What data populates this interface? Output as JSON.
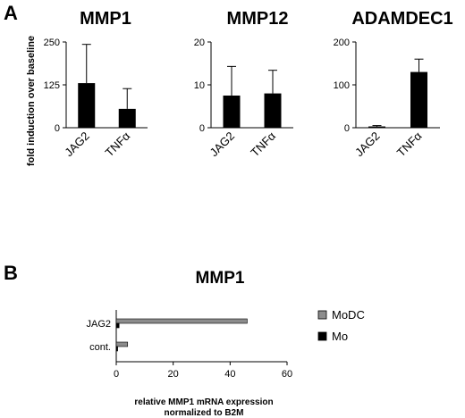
{
  "panels": [
    {
      "letter": "A"
    },
    {
      "letter": "B"
    }
  ],
  "colors": {
    "bar_dark": "#000000",
    "bar_gray": "#8c8c8c"
  },
  "chart_data": [
    {
      "type": "bar",
      "title": "MMP1",
      "categories": [
        "JAG2",
        "TNFα"
      ],
      "values": [
        130,
        55
      ],
      "error_high": [
        243,
        114
      ],
      "ylim": [
        0,
        250
      ],
      "yticks": [
        0,
        125,
        250
      ],
      "ylabel": "fold induction over baseline",
      "xlabel": ""
    },
    {
      "type": "bar",
      "title": "MMP12",
      "categories": [
        "JAG2",
        "TNFα"
      ],
      "values": [
        7.5,
        8
      ],
      "error_high": [
        14.3,
        13.4
      ],
      "ylim": [
        0,
        20
      ],
      "yticks": [
        0,
        10,
        20
      ],
      "ylabel": "",
      "xlabel": ""
    },
    {
      "type": "bar",
      "title": "ADAMDEC1",
      "categories": [
        "JAG2",
        "TNFα"
      ],
      "values": [
        3,
        130
      ],
      "error_high": [
        5,
        160
      ],
      "ylim": [
        0,
        200
      ],
      "yticks": [
        0,
        100,
        200
      ],
      "ylabel": "",
      "xlabel": ""
    },
    {
      "type": "bar",
      "orientation": "horizontal",
      "title": "MMP1",
      "categories": [
        "JAG2",
        "cont."
      ],
      "series": [
        {
          "name": "MoDC",
          "values": [
            46,
            4
          ],
          "color": "#8c8c8c"
        },
        {
          "name": "Mo",
          "values": [
            1,
            0.5
          ],
          "color": "#000000"
        }
      ],
      "xlim": [
        0,
        60
      ],
      "xticks": [
        0,
        20,
        40,
        60
      ],
      "xlabel": "relative MMP1 mRNA expression\nnormalized to B2M",
      "ylabel": "",
      "legend": "right"
    }
  ]
}
